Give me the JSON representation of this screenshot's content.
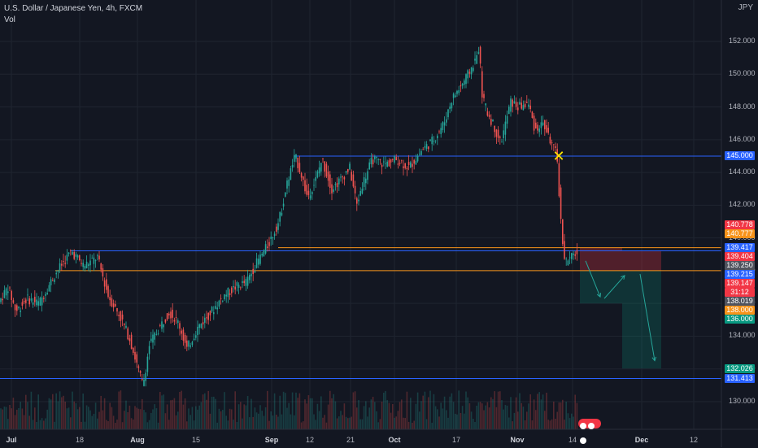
{
  "header": {
    "title": "U.S. Dollar / Japanese Yen, 4h, FXCM",
    "indicator": "Vol"
  },
  "currency_label": "JPY",
  "colors": {
    "background": "#131722",
    "up": "#26a69a",
    "down": "#ef5350",
    "grid": "#1f2430",
    "blue_line": "#2962ff",
    "orange_line": "#f7931a"
  },
  "chart_data": {
    "type": "candlestick",
    "symbol": "USDJPY",
    "timeframe": "4h",
    "y_ticks": [
      130.0,
      132.0,
      134.0,
      136.0,
      138.0,
      140.0,
      142.0,
      144.0,
      146.0,
      148.0,
      150.0,
      152.0
    ],
    "x_ticks": [
      {
        "label": "Jul",
        "bold": true
      },
      {
        "label": "18",
        "bold": false
      },
      {
        "label": "Aug",
        "bold": true
      },
      {
        "label": "15",
        "bold": false
      },
      {
        "label": "Sep",
        "bold": true
      },
      {
        "label": "12",
        "bold": false
      },
      {
        "label": "21",
        "bold": false
      },
      {
        "label": "Oct",
        "bold": true
      },
      {
        "label": "17",
        "bold": false
      },
      {
        "label": "Nov",
        "bold": true
      },
      {
        "label": "14",
        "bold": false
      },
      {
        "label": "Dec",
        "bold": true
      },
      {
        "label": "12",
        "bold": false
      }
    ],
    "price_path": [
      [
        0,
        136.0
      ],
      [
        12,
        137.0
      ],
      [
        22,
        135.5
      ],
      [
        35,
        136.3
      ],
      [
        50,
        136.0
      ],
      [
        70,
        137.8
      ],
      [
        90,
        139.2
      ],
      [
        105,
        138.3
      ],
      [
        122,
        138.8
      ],
      [
        135,
        136.5
      ],
      [
        150,
        135.2
      ],
      [
        162,
        133.8
      ],
      [
        172,
        132.0
      ],
      [
        178,
        131.0
      ],
      [
        186,
        133.5
      ],
      [
        198,
        134.5
      ],
      [
        210,
        135.5
      ],
      [
        222,
        134.8
      ],
      [
        232,
        133.2
      ],
      [
        245,
        134.5
      ],
      [
        262,
        135.5
      ],
      [
        278,
        136.5
      ],
      [
        292,
        137.0
      ],
      [
        305,
        137.3
      ],
      [
        318,
        138.5
      ],
      [
        332,
        139.6
      ],
      [
        345,
        141.0
      ],
      [
        356,
        143.5
      ],
      [
        365,
        145.0
      ],
      [
        372,
        144.0
      ],
      [
        380,
        142.5
      ],
      [
        390,
        143.5
      ],
      [
        398,
        144.8
      ],
      [
        410,
        143.0
      ],
      [
        420,
        143.5
      ],
      [
        432,
        144.3
      ],
      [
        441,
        142.0
      ],
      [
        447,
        143.2
      ],
      [
        460,
        144.8
      ],
      [
        475,
        144.5
      ],
      [
        490,
        144.8
      ],
      [
        505,
        144.3
      ],
      [
        520,
        145.3
      ],
      [
        535,
        146.0
      ],
      [
        548,
        147.0
      ],
      [
        558,
        148.5
      ],
      [
        568,
        149.2
      ],
      [
        578,
        150.0
      ],
      [
        588,
        151.0
      ],
      [
        591,
        151.7
      ],
      [
        595,
        148.8
      ],
      [
        600,
        147.8
      ],
      [
        608,
        147.0
      ],
      [
        618,
        145.8
      ],
      [
        630,
        148.3
      ],
      [
        640,
        148.0
      ],
      [
        652,
        148.2
      ],
      [
        660,
        146.6
      ],
      [
        670,
        147.0
      ],
      [
        680,
        145.8
      ],
      [
        687,
        145.0
      ],
      [
        692,
        140.8
      ],
      [
        697,
        138.5
      ],
      [
        702,
        138.7
      ],
      [
        707,
        138.9
      ],
      [
        710,
        139.1
      ]
    ],
    "horizontal_levels": [
      {
        "price": 145.0,
        "color": "#2962ff",
        "from_x": 362
      },
      {
        "price": 139.404,
        "color": "#f7931a",
        "from_x": 342
      },
      {
        "price": 139.215,
        "color": "#2962ff",
        "from_x": 87
      },
      {
        "price": 138.0,
        "color": "#f7931a",
        "from_x": 68
      },
      {
        "price": 131.413,
        "color": "#2962ff",
        "from_x": 0
      }
    ],
    "positions": [
      {
        "type": "short",
        "entry": 138.0,
        "stop": 139.404,
        "target": 136.0,
        "x1": 713,
        "x2": 765
      },
      {
        "type": "short",
        "entry": 138.0,
        "stop": 139.215,
        "target": 132.026,
        "x1": 765,
        "x2": 813
      }
    ],
    "marker": {
      "price": 145.0,
      "x": 687,
      "symbol": "✕"
    }
  },
  "price_badges": [
    {
      "value": "145.000",
      "color": "#2962ff",
      "price": 145.0
    },
    {
      "value": "140.778",
      "color": "#f23645",
      "price": 140.778
    },
    {
      "value": "140.777",
      "color": "#f7931a",
      "price": 140.777
    },
    {
      "value": "139.417",
      "color": "#2962ff",
      "price": 139.417
    },
    {
      "value": "139.404",
      "color": "#f23645",
      "price": 139.404
    },
    {
      "value": "139.250",
      "color": "#50535e",
      "price": 139.25
    },
    {
      "value": "139.215",
      "color": "#2962ff",
      "price": 139.215
    },
    {
      "value": "139.147",
      "color": "#f23645",
      "price": 139.147
    },
    {
      "value": "31:12",
      "color": "#f23645",
      "price": 138.65
    },
    {
      "value": "138.019",
      "color": "#50535e",
      "price": 138.019
    },
    {
      "value": "138.000",
      "color": "#f7931a",
      "price": 138.0
    },
    {
      "value": "136.000",
      "color": "#089981",
      "price": 136.0
    },
    {
      "value": "132.026",
      "color": "#089981",
      "price": 132.026
    },
    {
      "value": "131.413",
      "color": "#2962ff",
      "price": 131.413
    }
  ]
}
